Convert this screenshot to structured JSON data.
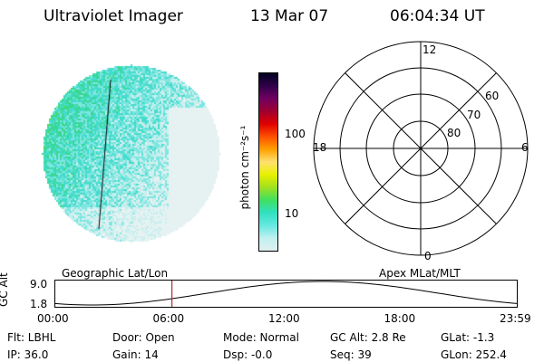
{
  "header": {
    "title": "Ultraviolet Imager",
    "date": "13 Mar 07",
    "time": "06:04:34 UT"
  },
  "colorbar": {
    "unit_label": "photon cm⁻²s⁻¹",
    "tick_100": "100",
    "tick_10": "10",
    "colors": [
      "#e0f0f0",
      "#c0f0f0",
      "#66e8e0",
      "#30e0c0",
      "#40e060",
      "#a0e020",
      "#e8f000",
      "#ffe070",
      "#ffa000",
      "#ff5000",
      "#e00000",
      "#a00030",
      "#700060",
      "#30004a",
      "#000020"
    ]
  },
  "polar_plot": {
    "mlt_top": "12",
    "mlt_left": "18",
    "mlt_right": "6",
    "mlt_bottom": "0",
    "ring_60": "60",
    "ring_70": "70",
    "ring_80": "80"
  },
  "timeline": {
    "left_label": "Geographic Lat/Lon",
    "right_label": "Apex MLat/MLT",
    "axis_label": "GC Alt",
    "y_top": "9.0",
    "y_bottom": "1.8",
    "x_ticks": [
      "00:00",
      "06:00",
      "12:00",
      "18:00",
      "23:59"
    ],
    "cursor_fraction": 0.2532,
    "cursor_color": "#b03030"
  },
  "footer": {
    "flt": "Flt: LBHL",
    "ip": "IP: 36.0",
    "door": "Door: Open",
    "gain": "Gain: 14",
    "mode": "Mode: Normal",
    "dsp": "Dsp:   -0.0",
    "gcalt": "GC Alt: 2.8 Re",
    "seq": "Seq: 39",
    "glat": "GLat:  -1.3",
    "glon": "GLon: 252.4"
  }
}
